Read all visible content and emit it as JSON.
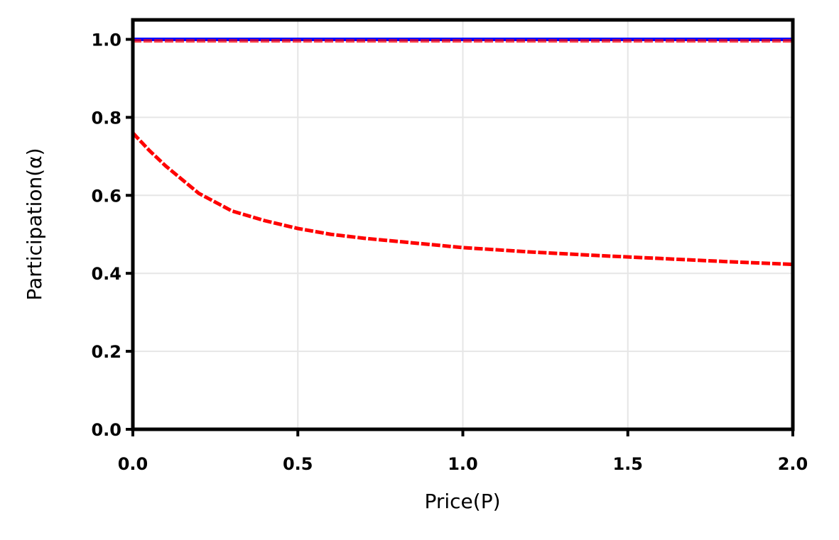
{
  "chart_data": {
    "type": "line",
    "xlabel": "Price(P)",
    "ylabel": "Participation(α)",
    "xlim": [
      0,
      2
    ],
    "ylim": [
      0,
      1.05
    ],
    "xticks": [
      {
        "value": 0,
        "label": "0.0"
      },
      {
        "value": 0.5,
        "label": "0.5"
      },
      {
        "value": 1,
        "label": "1.0"
      },
      {
        "value": 1.5,
        "label": "1.5"
      },
      {
        "value": 2,
        "label": "2.0"
      }
    ],
    "yticks": [
      {
        "value": 0,
        "label": "0.0"
      },
      {
        "value": 0.2,
        "label": "0.2"
      },
      {
        "value": 0.4,
        "label": "0.4"
      },
      {
        "value": 0.6,
        "label": "0.6"
      },
      {
        "value": 0.8,
        "label": "0.8"
      },
      {
        "value": 1,
        "label": "1.0"
      }
    ],
    "grid": true,
    "series": [
      {
        "color": "#0000ff",
        "style": "solid",
        "x": [
          0,
          2
        ],
        "values": [
          1,
          1
        ]
      },
      {
        "color": "#ff0000",
        "style": "dashed",
        "x": [
          0,
          2
        ],
        "values": [
          0.996,
          0.996
        ]
      },
      {
        "color": "#ff0000",
        "style": "dashed",
        "x": [
          0,
          0.05,
          0.1,
          0.15,
          0.2,
          0.3,
          0.4,
          0.5,
          0.6,
          0.7,
          0.8,
          0.9,
          1.0,
          1.2,
          1.4,
          1.6,
          1.8,
          2.0
        ],
        "values": [
          0.76,
          0.715,
          0.675,
          0.64,
          0.605,
          0.56,
          0.535,
          0.515,
          0.5,
          0.49,
          0.482,
          0.474,
          0.466,
          0.455,
          0.446,
          0.438,
          0.43,
          0.423
        ]
      }
    ]
  }
}
